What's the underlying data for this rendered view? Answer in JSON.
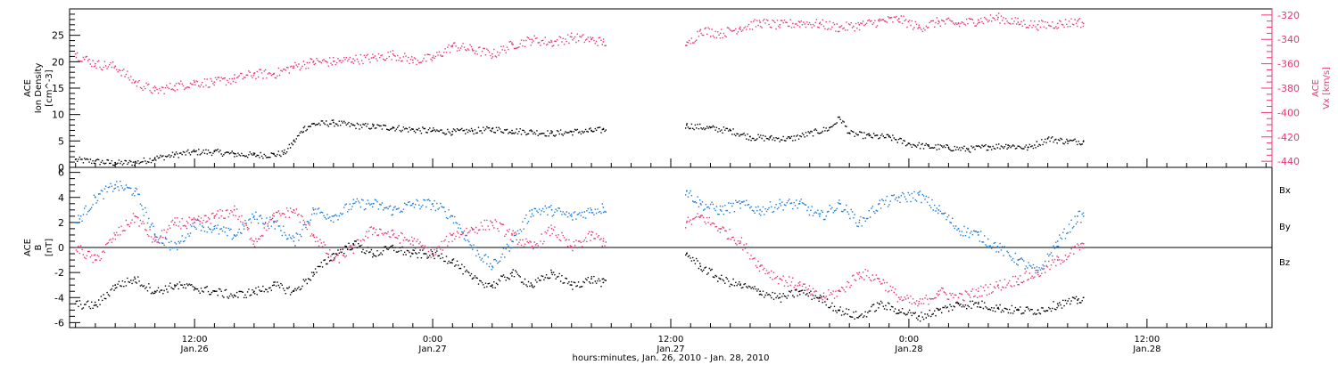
{
  "figure": {
    "xlabel": "hours:minutes, Jan. 26, 2010 - Jan. 28, 2010",
    "x_ticks": [
      {
        "time": "12:00",
        "date": "Jan.26",
        "hours": 12
      },
      {
        "time": "0:00",
        "date": "Jan.27",
        "hours": 24
      },
      {
        "time": "12:00",
        "date": "Jan.27",
        "hours": 36
      },
      {
        "time": "0:00",
        "date": "Jan.28",
        "hours": 48
      },
      {
        "time": "12:00",
        "date": "Jan.28",
        "hours": 60
      }
    ]
  },
  "colors": {
    "black": "#000000",
    "pink": "#e83870",
    "blue": "#1a7ad8"
  },
  "chart_data": [
    {
      "type": "scatter",
      "name": "top-panel",
      "x_range_hours": [
        5.7,
        66.3
      ],
      "left_axis": {
        "label_line1": "ACE",
        "label_line2": "Ion Density",
        "label_units": "[cm^-3]",
        "ylim": [
          0,
          30
        ],
        "ticks": [
          0,
          5,
          10,
          15,
          20,
          25
        ]
      },
      "right_axis": {
        "label_line1": "ACE",
        "label_line2": "Vx [km/s]",
        "ylim": [
          -445,
          -315
        ],
        "ticks": [
          -320,
          -340,
          -360,
          -380,
          -400,
          -420,
          -440
        ]
      },
      "series": [
        {
          "name": "Ion Density",
          "axis": "left",
          "color": "#000000",
          "x": [
            6.0,
            7.0,
            8.0,
            9.0,
            10.0,
            11.0,
            12.0,
            13.0,
            14.0,
            15.0,
            16.0,
            16.5,
            17.0,
            17.5,
            18.0,
            19.0,
            20.0,
            21.0,
            22.0,
            23.0,
            24.0,
            25.0,
            26.0,
            27.0,
            28.0,
            29.0,
            30.0,
            31.0,
            32.0,
            32.6,
            36.8,
            38.0,
            39.0,
            40.0,
            41.0,
            42.0,
            43.0,
            44.0,
            44.5,
            45.0,
            46.0,
            47.0,
            48.0,
            49.0,
            50.0,
            51.0,
            52.0,
            53.0,
            54.0,
            55.0,
            56.0,
            56.8
          ],
          "values": [
            1.5,
            1.2,
            0.9,
            1.0,
            1.8,
            2.5,
            3.0,
            3.0,
            2.6,
            2.4,
            2.5,
            2.8,
            5.0,
            7.5,
            8.3,
            8.5,
            8.0,
            7.8,
            7.6,
            7.2,
            7.0,
            6.8,
            7.0,
            7.3,
            7.0,
            6.8,
            6.5,
            6.8,
            7.0,
            7.2,
            8.0,
            7.5,
            7.0,
            5.8,
            5.6,
            5.5,
            6.5,
            7.5,
            9.5,
            6.5,
            6.0,
            5.8,
            4.5,
            4.0,
            3.8,
            3.5,
            4.0,
            4.2,
            3.8,
            5.5,
            5.0,
            5.0
          ]
        },
        {
          "name": "Vx",
          "axis": "right",
          "color": "#e83870",
          "x": [
            6.0,
            7.0,
            8.0,
            9.0,
            10.0,
            11.0,
            12.0,
            13.0,
            14.0,
            15.0,
            16.0,
            17.0,
            18.0,
            19.0,
            20.0,
            21.0,
            22.0,
            23.0,
            24.0,
            25.0,
            26.0,
            27.0,
            28.0,
            29.0,
            30.0,
            31.0,
            32.0,
            32.6,
            36.8,
            37.5,
            38.5,
            39.5,
            40.5,
            41.5,
            42.5,
            43.5,
            44.5,
            45.5,
            46.5,
            47.5,
            48.5,
            49.5,
            50.5,
            51.5,
            52.5,
            53.5,
            54.5,
            55.5,
            56.5,
            56.8
          ],
          "values": [
            -352,
            -360,
            -362,
            -375,
            -382,
            -378,
            -375,
            -375,
            -372,
            -368,
            -368,
            -362,
            -358,
            -358,
            -356,
            -355,
            -352,
            -357,
            -355,
            -345,
            -348,
            -352,
            -344,
            -340,
            -342,
            -338,
            -340,
            -342,
            -345,
            -332,
            -335,
            -330,
            -326,
            -328,
            -326,
            -327,
            -330,
            -328,
            -325,
            -323,
            -330,
            -325,
            -327,
            -324,
            -322,
            -326,
            -328,
            -327,
            -325,
            -327
          ]
        }
      ]
    },
    {
      "type": "scatter",
      "name": "bottom-panel",
      "x_range_hours": [
        5.7,
        66.3
      ],
      "left_axis": {
        "label_line1": "ACE",
        "label_line2": "B",
        "label_units": "[nT]",
        "ylim": [
          -6.4,
          6.4
        ],
        "ticks": [
          -6,
          -4,
          -2,
          0,
          2,
          4,
          6
        ]
      },
      "legend": [
        {
          "label": "Bx",
          "color": "#000000"
        },
        {
          "label": "By",
          "color": "#1a7ad8"
        },
        {
          "label": "Bz",
          "color": "#e83870"
        }
      ],
      "zero_line": true,
      "series": [
        {
          "name": "Bx",
          "color": "#000000",
          "x": [
            6.0,
            7.0,
            8.0,
            9.0,
            10.0,
            11.0,
            12.0,
            13.0,
            14.0,
            15.0,
            16.0,
            17.0,
            18.0,
            19.0,
            20.0,
            21.0,
            22.0,
            23.0,
            24.0,
            25.0,
            26.0,
            27.0,
            28.0,
            29.0,
            30.0,
            31.0,
            32.0,
            32.6,
            36.8,
            37.5,
            38.5,
            39.5,
            40.5,
            41.5,
            42.5,
            43.5,
            44.5,
            45.5,
            46.5,
            47.5,
            48.5,
            49.5,
            50.5,
            51.5,
            52.5,
            53.5,
            54.5,
            55.5,
            56.5,
            56.8
          ],
          "values": [
            -4.5,
            -4.6,
            -3.0,
            -2.5,
            -3.5,
            -3.0,
            -3.2,
            -3.5,
            -3.8,
            -3.5,
            -3.0,
            -3.5,
            -2.0,
            -0.5,
            0.3,
            -0.5,
            0.0,
            -0.5,
            -0.5,
            -1.0,
            -2.5,
            -3.0,
            -2.0,
            -3.0,
            -2.0,
            -3.0,
            -2.5,
            -2.8,
            -0.5,
            -1.5,
            -2.5,
            -3.0,
            -3.5,
            -4.0,
            -3.5,
            -4.0,
            -5.0,
            -5.5,
            -4.5,
            -5.0,
            -5.5,
            -5.0,
            -4.5,
            -4.5,
            -4.8,
            -5.0,
            -5.0,
            -4.5,
            -4.2,
            -4.0
          ]
        },
        {
          "name": "By",
          "color": "#1a7ad8",
          "x": [
            6.0,
            7.0,
            8.0,
            9.0,
            10.0,
            11.0,
            12.0,
            13.0,
            14.0,
            15.0,
            16.0,
            17.0,
            18.0,
            19.0,
            20.0,
            21.0,
            22.0,
            23.0,
            24.0,
            25.0,
            26.0,
            27.0,
            28.0,
            29.0,
            30.0,
            31.0,
            32.0,
            32.6,
            36.8,
            37.5,
            38.5,
            39.5,
            40.5,
            41.5,
            42.5,
            43.5,
            44.5,
            45.5,
            46.5,
            47.5,
            48.5,
            49.5,
            50.5,
            51.5,
            52.5,
            53.5,
            54.5,
            55.5,
            56.5,
            56.8
          ],
          "values": [
            2.0,
            4.0,
            5.0,
            4.5,
            1.0,
            0.0,
            2.0,
            1.5,
            1.0,
            2.5,
            2.0,
            0.5,
            3.0,
            2.5,
            3.5,
            3.5,
            3.0,
            3.5,
            3.5,
            2.5,
            0.0,
            -1.5,
            0.5,
            3.0,
            3.0,
            2.5,
            3.0,
            3.2,
            4.5,
            3.5,
            3.0,
            3.5,
            3.0,
            3.5,
            3.5,
            2.5,
            3.5,
            2.0,
            3.5,
            4.0,
            4.2,
            3.0,
            1.5,
            1.0,
            0.0,
            -1.0,
            -2.0,
            0.5,
            2.5,
            2.5
          ]
        },
        {
          "name": "Bz",
          "color": "#e83870",
          "x": [
            6.0,
            7.0,
            8.0,
            9.0,
            10.0,
            11.0,
            12.0,
            13.0,
            14.0,
            15.0,
            16.0,
            17.0,
            18.0,
            19.0,
            20.0,
            21.0,
            22.0,
            23.0,
            24.0,
            25.0,
            26.0,
            27.0,
            28.0,
            29.0,
            30.0,
            31.0,
            32.0,
            32.6,
            36.8,
            37.5,
            38.5,
            39.5,
            40.5,
            41.5,
            42.5,
            43.5,
            44.5,
            45.5,
            46.5,
            47.5,
            48.5,
            49.5,
            50.5,
            51.5,
            52.5,
            53.5,
            54.5,
            55.5,
            56.5,
            56.8
          ],
          "values": [
            0.0,
            -1.0,
            1.0,
            2.5,
            0.5,
            2.0,
            2.0,
            2.5,
            3.0,
            0.5,
            2.5,
            3.0,
            1.0,
            -1.0,
            0.0,
            1.5,
            1.0,
            0.5,
            -0.5,
            1.0,
            1.5,
            2.0,
            1.0,
            0.0,
            1.5,
            0.0,
            1.0,
            0.5,
            2.0,
            2.5,
            1.5,
            0.5,
            -1.5,
            -2.5,
            -3.0,
            -4.0,
            -3.5,
            -2.0,
            -2.5,
            -4.0,
            -4.5,
            -3.5,
            -4.0,
            -3.5,
            -3.0,
            -2.5,
            -2.0,
            -1.0,
            0.0,
            0.3
          ]
        }
      ]
    }
  ]
}
